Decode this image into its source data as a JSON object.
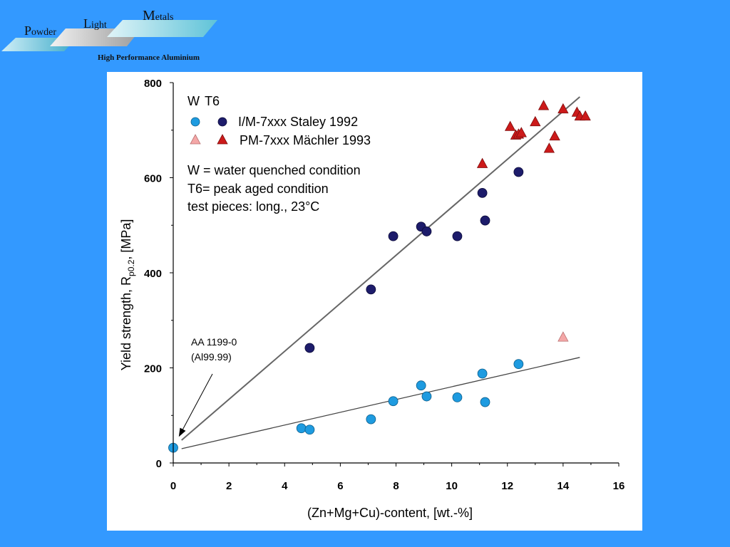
{
  "logo": {
    "word1_initial": "P",
    "word1_rest": "owder",
    "word2_initial": "L",
    "word2_rest": "ight",
    "word3_initial": "M",
    "word3_rest": "etals",
    "tagline": "High Performance Aluminium"
  },
  "chart_data": {
    "type": "scatter",
    "xlabel": "(Zn+Mg+Cu)-content, [wt.-%]",
    "ylabel_main": "Yield strength, R",
    "ylabel_sub": "p0.2",
    "ylabel_tail": ", [MPa]",
    "xlim": [
      0,
      16
    ],
    "ylim": [
      0,
      800
    ],
    "x_ticks": [
      "0",
      "2",
      "4",
      "6",
      "8",
      "10",
      "12",
      "14",
      "16"
    ],
    "y_ticks": [
      "0",
      "200",
      "400",
      "600",
      "800"
    ],
    "grid": false,
    "legend": {
      "header_w": "W",
      "header_t6": "T6",
      "staley": "I/M-7xxx Staley 1992",
      "maechler": "PM-7xxx Mächler 1993"
    },
    "notes": [
      "W = water quenched condition",
      "T6= peak aged condition",
      "test pieces: long., 23°C"
    ],
    "annotation": {
      "line1": "AA 1199-0",
      "line2": "(Al99.99)",
      "x": 0.2,
      "y": 55
    },
    "colors": {
      "staley_W": "#1e9be0",
      "staley_T6": "#1d1c6b",
      "maechler_W": "#f4a7a7",
      "maechler_T6": "#cc1a1a"
    },
    "series": [
      {
        "name": "I/M-7xxx Staley 1992 (W)",
        "marker": "circle",
        "color_key": "staley_W",
        "points": [
          [
            0,
            32
          ],
          [
            4.6,
            73
          ],
          [
            4.9,
            70
          ],
          [
            7.1,
            92
          ],
          [
            7.9,
            130
          ],
          [
            8.9,
            163
          ],
          [
            9.1,
            140
          ],
          [
            10.2,
            138
          ],
          [
            11.1,
            188
          ],
          [
            11.2,
            128
          ],
          [
            12.4,
            208
          ]
        ]
      },
      {
        "name": "I/M-7xxx Staley 1992 (T6)",
        "marker": "circle",
        "color_key": "staley_T6",
        "points": [
          [
            4.9,
            242
          ],
          [
            7.1,
            365
          ],
          [
            7.9,
            477
          ],
          [
            8.9,
            497
          ],
          [
            9.1,
            487
          ],
          [
            10.2,
            477
          ],
          [
            11.1,
            568
          ],
          [
            11.2,
            510
          ],
          [
            12.4,
            612
          ]
        ]
      },
      {
        "name": "PM-7xxx Mächler 1993 (W)",
        "marker": "triangle",
        "color_key": "maechler_W",
        "points": [
          [
            14.0,
            265
          ]
        ]
      },
      {
        "name": "PM-7xxx Mächler 1993 (T6)",
        "marker": "triangle",
        "color_key": "maechler_T6",
        "points": [
          [
            11.1,
            630
          ],
          [
            12.1,
            708
          ],
          [
            12.3,
            690
          ],
          [
            12.4,
            692
          ],
          [
            12.5,
            695
          ],
          [
            13.0,
            718
          ],
          [
            13.3,
            752
          ],
          [
            13.5,
            662
          ],
          [
            13.7,
            688
          ],
          [
            14.0,
            745
          ],
          [
            14.5,
            738
          ],
          [
            14.6,
            730
          ],
          [
            14.8,
            730
          ]
        ]
      }
    ],
    "fit_lines": [
      {
        "x1": 0.3,
        "y1": 48,
        "x2": 14.6,
        "y2": 770,
        "width": 2,
        "color": "#666666"
      },
      {
        "x1": 0.3,
        "y1": 30,
        "x2": 14.6,
        "y2": 222,
        "width": 1.3,
        "color": "#444444"
      }
    ]
  }
}
